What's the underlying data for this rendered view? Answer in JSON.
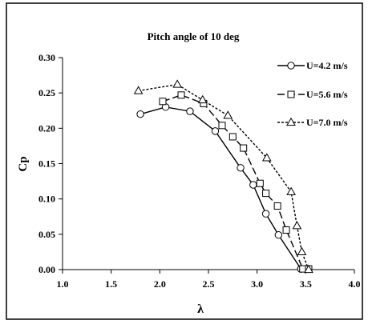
{
  "chart_data": {
    "type": "line",
    "title": "Pitch angle of 10 deg",
    "xlabel": "λ",
    "ylabel": "Cp",
    "xlim": [
      1.0,
      4.0
    ],
    "ylim": [
      0.0,
      0.3
    ],
    "x_ticks": [
      "1.0",
      "1.5",
      "2.0",
      "2.5",
      "3.0",
      "3.5",
      "4.0"
    ],
    "y_ticks": [
      "0.00",
      "0.05",
      "0.10",
      "0.15",
      "0.20",
      "0.25",
      "0.30"
    ],
    "grid": false,
    "legend_position": "top-right",
    "series": [
      {
        "name": "U=4.2 m/s",
        "marker": "circle",
        "line_style": "solid",
        "x": [
          1.8,
          2.06,
          2.31,
          2.57,
          2.83,
          2.96,
          3.09,
          3.22,
          3.45
        ],
        "y": [
          0.22,
          0.23,
          0.224,
          0.196,
          0.144,
          0.12,
          0.079,
          0.049,
          0.001
        ]
      },
      {
        "name": "U=5.6 m/s",
        "marker": "square",
        "line_style": "long-dash",
        "x": [
          2.03,
          2.22,
          2.45,
          2.64,
          2.75,
          2.86,
          3.03,
          3.09,
          3.21,
          3.3,
          3.47,
          3.53
        ],
        "y": [
          0.238,
          0.247,
          0.235,
          0.204,
          0.188,
          0.172,
          0.122,
          0.108,
          0.09,
          0.056,
          0.001,
          0.001
        ]
      },
      {
        "name": "U=7.0 m/s",
        "marker": "triangle",
        "line_style": "short-dash",
        "x": [
          1.78,
          2.18,
          2.44,
          2.7,
          3.1,
          3.35,
          3.41,
          3.46,
          3.53
        ],
        "y": [
          0.253,
          0.262,
          0.24,
          0.218,
          0.158,
          0.11,
          0.062,
          0.025,
          0.0
        ]
      }
    ]
  }
}
